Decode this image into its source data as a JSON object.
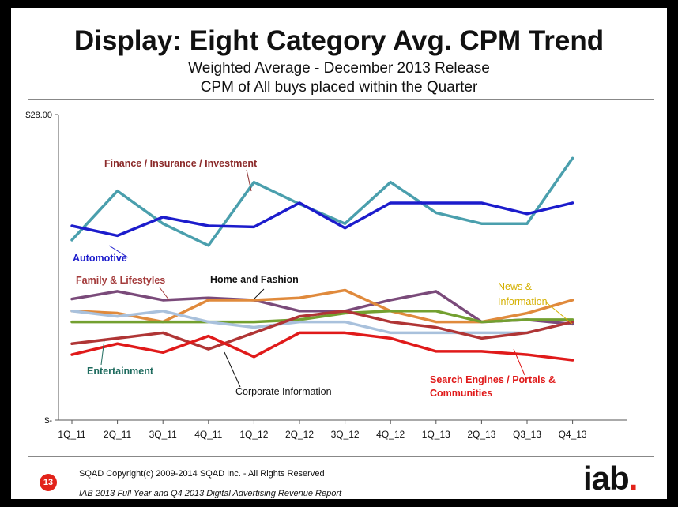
{
  "header": {
    "title": "Display:  Eight Category Avg. CPM Trend",
    "subtitle1": "Weighted Average  - December 2013 Release",
    "subtitle2": "CPM of All buys placed within the Quarter"
  },
  "footer": {
    "copyright": "SQAD Copyright(c) 2009-2014 SQAD Inc. - All Rights Reserved",
    "report": "IAB 2013 Full Year and Q4 2013 Digital Advertising Revenue Report",
    "page_number": "13",
    "logo_text": "iab",
    "logo_dot": "."
  },
  "chart_data": {
    "type": "line",
    "title": "Display:  Eight Category Avg. CPM Trend",
    "xlabel": "",
    "ylabel": "",
    "ylim": [
      0,
      28
    ],
    "y_tick_labels": [
      "$28.00",
      "$-"
    ],
    "categories": [
      "1Q_11",
      "2Q_11",
      "3Q_11",
      "4Q_11",
      "1Q_12",
      "2Q_12",
      "3Q_12",
      "4Q_12",
      "1Q_13",
      "2Q_13",
      "Q3_13",
      "Q4_13"
    ],
    "series": [
      {
        "name": "Finance / Insurance / Investment",
        "color": "#4a9fad",
        "label_color": "#8b2a2a",
        "values": [
          16.5,
          21.0,
          18.0,
          16.0,
          21.8,
          19.8,
          18.0,
          21.8,
          19.0,
          18.0,
          18.0,
          24.0
        ]
      },
      {
        "name": "Automotive",
        "color": "#1c1ccc",
        "label_color": "#1c1ccc",
        "values": [
          17.8,
          16.9,
          18.6,
          17.8,
          17.7,
          19.9,
          17.6,
          19.9,
          19.9,
          19.9,
          18.9,
          19.9
        ]
      },
      {
        "name": "Family & Lifestyles",
        "color": "#7a4a7a",
        "label_color": "#a33a3a",
        "values": [
          11.1,
          11.8,
          11.0,
          11.2,
          11.0,
          10.0,
          10.0,
          11.0,
          11.8,
          9.0,
          9.2,
          8.8
        ]
      },
      {
        "name": "Home and Fashion",
        "color": "#e08a3c",
        "label_color": "#111111",
        "values": [
          10.0,
          9.8,
          9.0,
          11.0,
          11.0,
          11.2,
          11.9,
          10.0,
          9.0,
          9.0,
          9.8,
          11.0
        ]
      },
      {
        "name": "News & Information",
        "color": "#73a030",
        "label_color": "#d4b000",
        "values": [
          9.0,
          9.0,
          9.0,
          9.0,
          9.0,
          9.2,
          9.8,
          10.0,
          10.0,
          9.0,
          9.2,
          9.2
        ]
      },
      {
        "name": "Entertainment",
        "color": "#a9c1dc",
        "label_color": "#1e6b5e",
        "values": [
          10.0,
          9.5,
          10.0,
          9.0,
          8.5,
          9.0,
          9.0,
          8.0,
          8.0,
          8.0,
          8.0,
          9.0
        ]
      },
      {
        "name": "Corporate Information",
        "color": "#b03535",
        "label_color": "#111111",
        "values": [
          7.0,
          7.5,
          8.0,
          6.5,
          8.0,
          9.5,
          10.0,
          9.0,
          8.5,
          7.5,
          8.0,
          9.0
        ]
      },
      {
        "name": "Search Engines / Portals & Communities",
        "color": "#e01a1a",
        "label_color": "#e01a1a",
        "values": [
          6.0,
          7.0,
          6.2,
          7.7,
          5.8,
          8.0,
          8.0,
          7.5,
          6.3,
          6.3,
          6.0,
          5.5
        ]
      }
    ],
    "annotations": [
      {
        "text": "Finance / Insurance / Investment",
        "series": 0
      },
      {
        "text": "Automotive",
        "series": 1
      },
      {
        "text": "Family & Lifestyles",
        "series": 2
      },
      {
        "text": "Home and Fashion",
        "series": 3
      },
      {
        "text": "News &",
        "series": 4
      },
      {
        "text": "Information",
        "series": 4
      },
      {
        "text": "Entertainment",
        "series": 5
      },
      {
        "text": "Corporate Information",
        "series": 6
      },
      {
        "text": "Search Engines / Portals &",
        "series": 7
      },
      {
        "text": "Communities",
        "series": 7
      }
    ]
  }
}
